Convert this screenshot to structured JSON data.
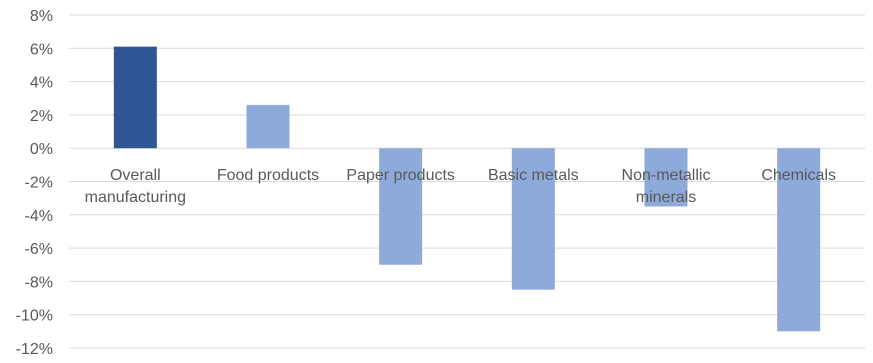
{
  "chart_data": {
    "type": "bar",
    "categories": [
      [
        "Overall",
        "manufacturing"
      ],
      [
        "Food products"
      ],
      [
        "Paper products"
      ],
      [
        "Basic metals"
      ],
      [
        "Non-metallic",
        "minerals"
      ],
      [
        "Chemicals"
      ]
    ],
    "values": [
      6.1,
      2.6,
      -7.0,
      -8.5,
      -3.5,
      -11.0
    ],
    "y_unit": "%",
    "ylim": [
      -12,
      8
    ],
    "yticks": [
      8,
      6,
      4,
      2,
      0,
      -2,
      -4,
      -6,
      -8,
      -10,
      -12
    ],
    "ytick_labels": [
      "8%",
      "6%",
      "4%",
      "2%",
      "0%",
      "-2%",
      "-4%",
      "-6%",
      "-8%",
      "-10%",
      "-12%"
    ],
    "grid": true,
    "legend": "none",
    "title": "",
    "xlabel": "",
    "ylabel": "",
    "colors": {
      "highlight_bar": "#2f5597",
      "bar": "#8eaadb",
      "grid": "#d9d9d9",
      "text": "#595959"
    },
    "highlight_index": 0
  }
}
